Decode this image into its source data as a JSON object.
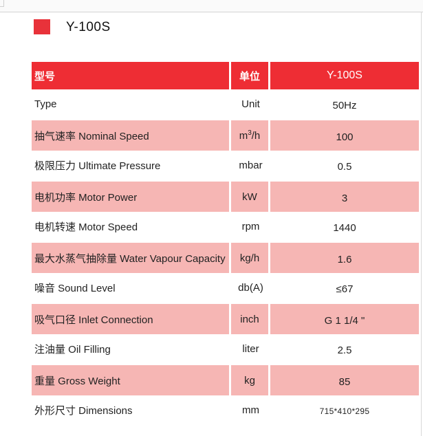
{
  "title": {
    "model": "Y-100S"
  },
  "colors": {
    "accent": "#ee2d34",
    "row_highlight": "#f6b6b4"
  },
  "table": {
    "header": {
      "param": "型号",
      "unit": "单位",
      "model": "Y-100S"
    },
    "rows": [
      {
        "param": "Type",
        "unit": "Unit",
        "value": "50Hz",
        "highlight": false
      },
      {
        "param": "抽气速率 Nominal Speed",
        "unit_base": "m",
        "unit_sup": "3",
        "unit_tail": "/h",
        "value": "100",
        "highlight": true
      },
      {
        "param": "极限压力 Ultimate Pressure",
        "unit": "mbar",
        "value": "0.5",
        "highlight": false
      },
      {
        "param": "电机功率 Motor Power",
        "unit": "kW",
        "value": "3",
        "highlight": true
      },
      {
        "param": "电机转速 Motor Speed",
        "unit": "rpm",
        "value": "1440",
        "highlight": false
      },
      {
        "param": "最大水蒸气抽除量 Water Vapour Capacity",
        "unit": "kg/h",
        "value": "1.6",
        "highlight": true
      },
      {
        "param": "噪音 Sound Level",
        "unit": "db(A)",
        "value": "≤67",
        "highlight": false
      },
      {
        "param": "吸气口径 Inlet   Connection",
        "unit": "inch",
        "value": "G 1  1/4 \"",
        "highlight": true
      },
      {
        "param": "注油量 Oil Filling",
        "unit": "liter",
        "value": "2.5",
        "highlight": false
      },
      {
        "param": "重量 Gross Weight",
        "unit": "kg",
        "value": "85",
        "highlight": true
      },
      {
        "param": "外形尺寸 Dimensions",
        "unit": "mm",
        "value": "715*410*295",
        "highlight": false
      }
    ]
  }
}
